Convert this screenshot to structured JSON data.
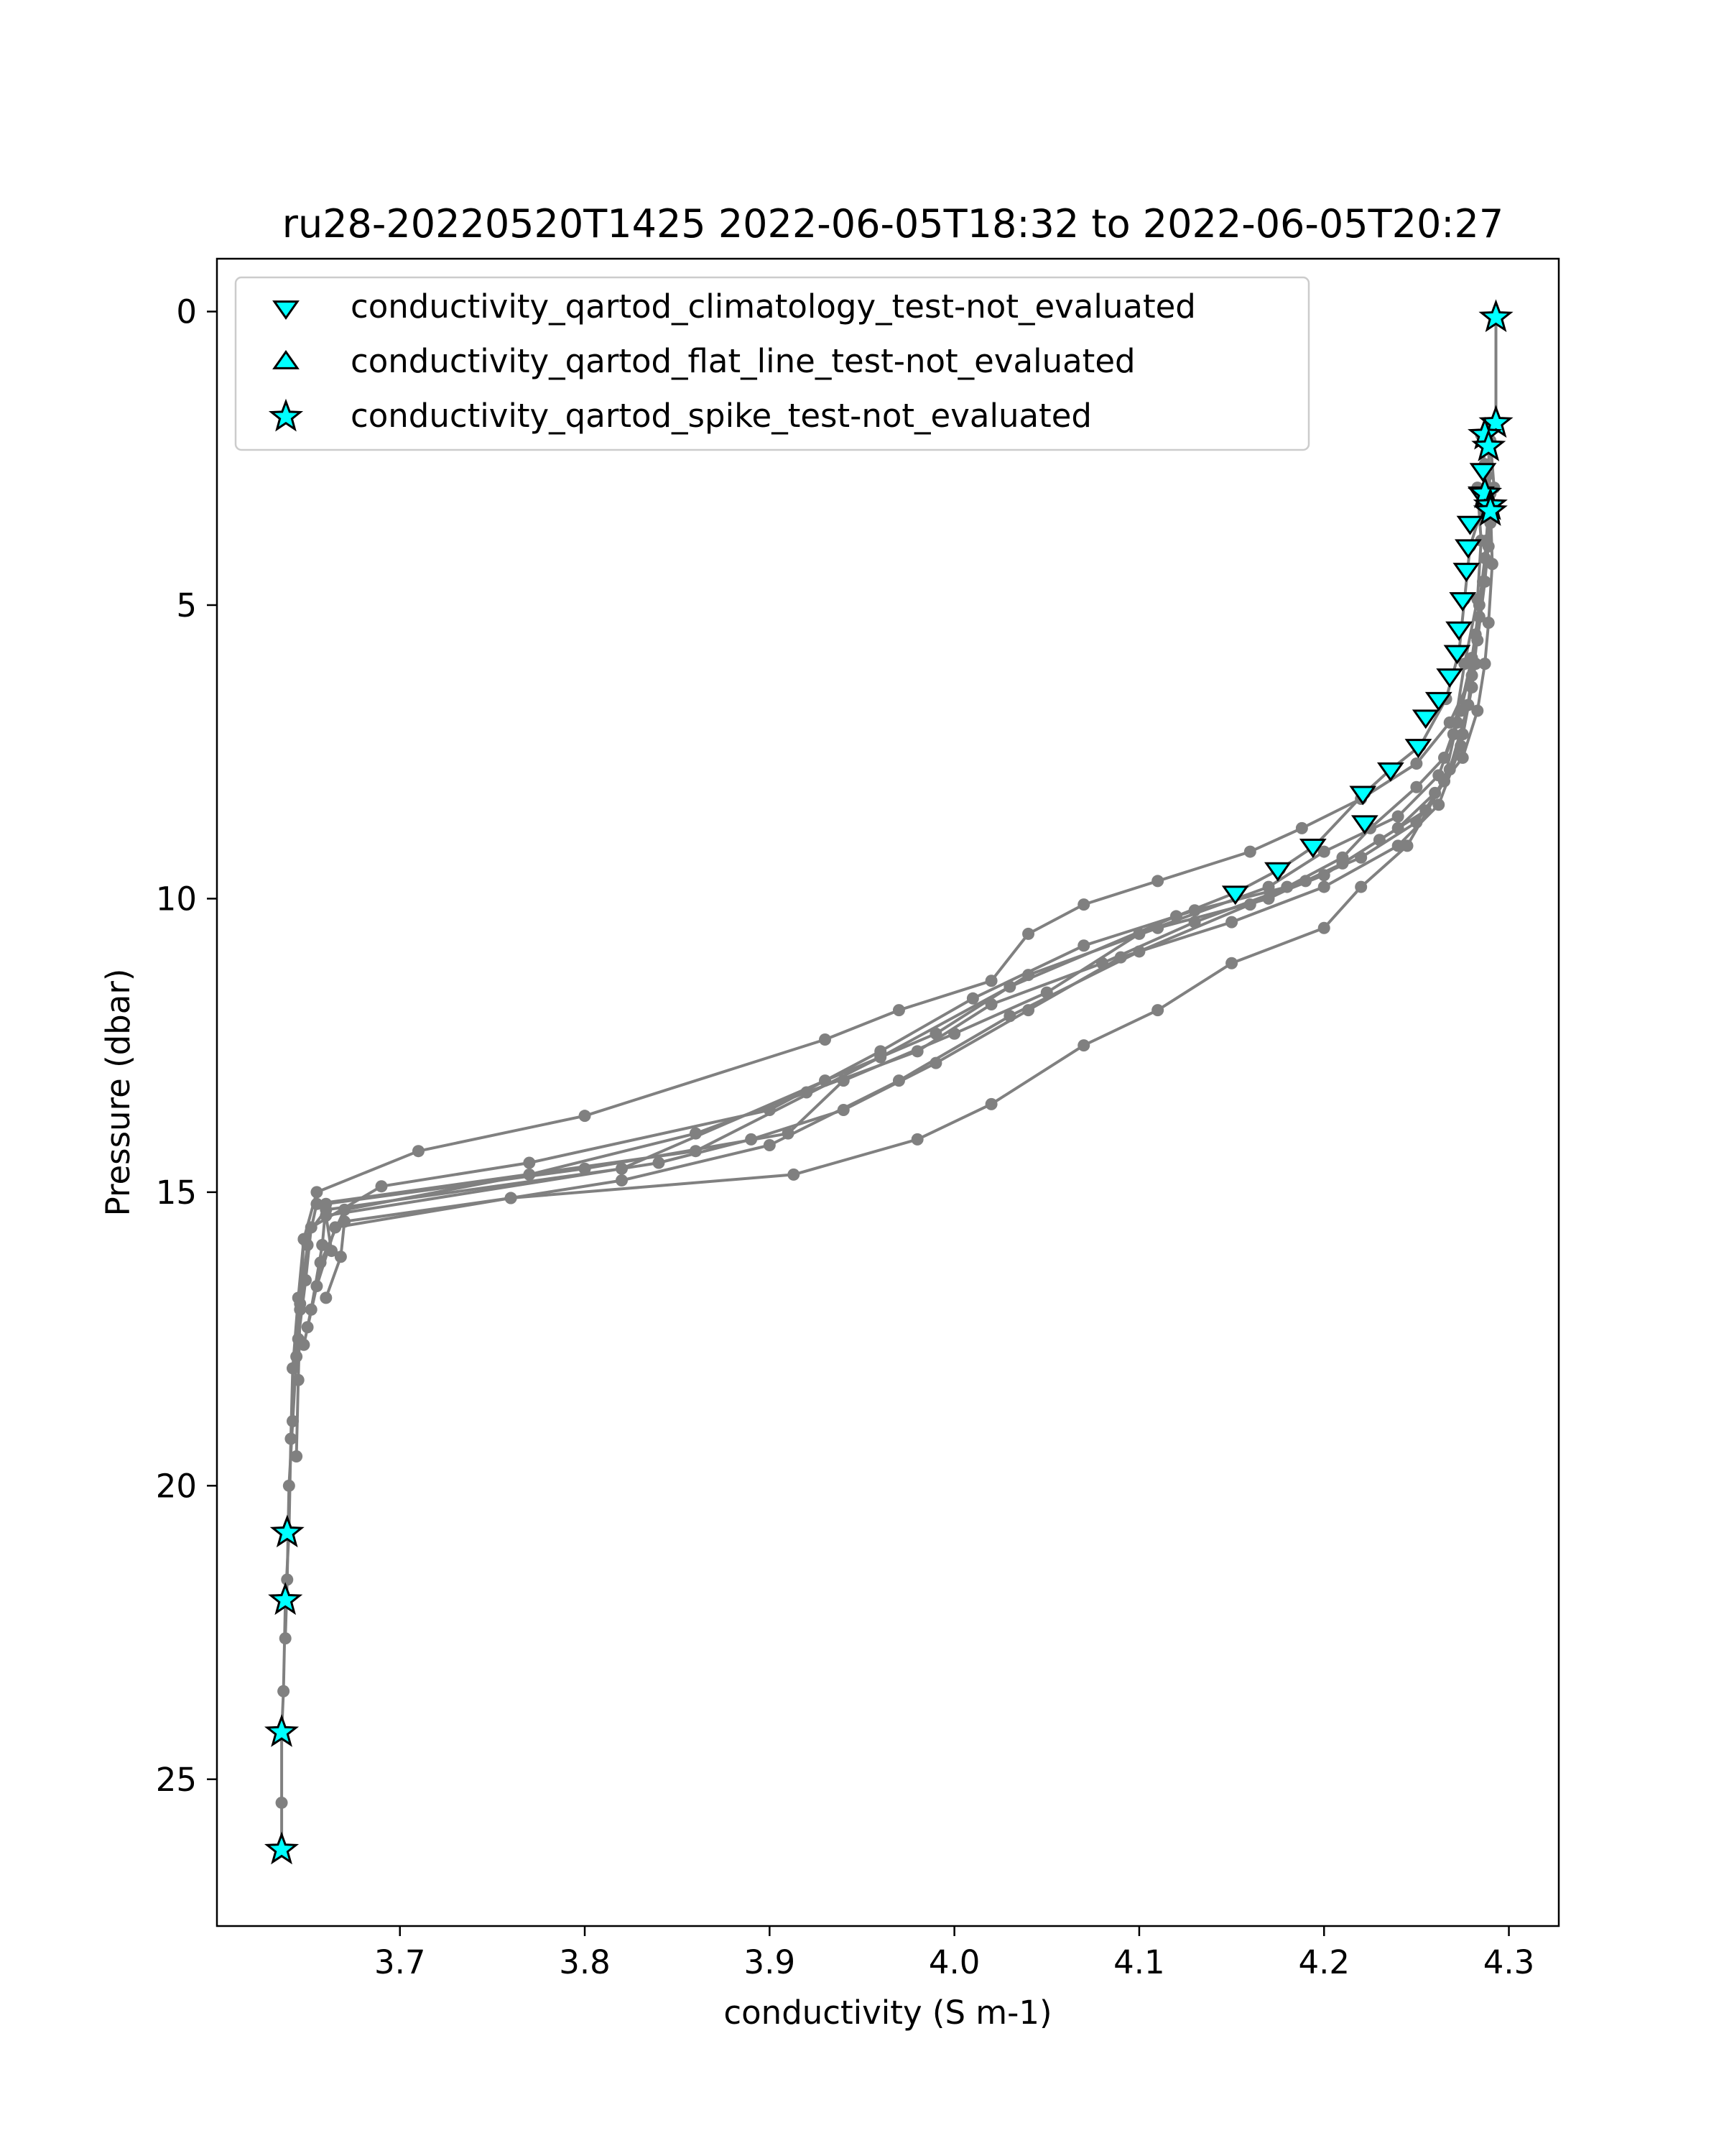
{
  "chart_data": {
    "type": "scatter",
    "title": "ru28-20220520T1425 2022-06-05T18:32 to 2022-06-05T20:27",
    "xlabel": "conductivity (S m-1)",
    "ylabel": "Pressure (dbar)",
    "xlim": [
      3.601,
      4.327
    ],
    "ylim": [
      27.5,
      -0.9
    ],
    "y_inverted": true,
    "x_ticks": [
      "3.7",
      "3.8",
      "3.9",
      "4.0",
      "4.1",
      "4.2",
      "4.3"
    ],
    "y_ticks": [
      "0",
      "5",
      "10",
      "15",
      "20",
      "25"
    ],
    "grid": false,
    "legend_position": "top-left",
    "line_color": "#808080",
    "marker_color": "#00ffff",
    "profiles": [
      {
        "points": [
          [
            4.293,
            0.1
          ],
          [
            4.293,
            1.9
          ],
          [
            4.289,
            2.3
          ],
          [
            4.29,
            3.3
          ],
          [
            4.291,
            4.3
          ],
          [
            4.289,
            5.3
          ],
          [
            4.287,
            6.0
          ],
          [
            4.283,
            6.8
          ],
          [
            4.275,
            7.6
          ],
          [
            4.26,
            8.2
          ],
          [
            4.24,
            8.8
          ],
          [
            4.21,
            9.4
          ],
          [
            4.17,
            10.0
          ],
          [
            4.11,
            10.5
          ],
          [
            4.04,
            11.3
          ],
          [
            3.99,
            12.3
          ],
          [
            3.93,
            13.1
          ],
          [
            3.82,
            14.6
          ],
          [
            3.66,
            15.3
          ],
          [
            3.648,
            15.8
          ],
          [
            3.645,
            16.8
          ],
          [
            3.642,
            18.0
          ],
          [
            3.641,
            19.2
          ],
          [
            3.64,
            20.8
          ],
          [
            3.638,
            22.0
          ],
          [
            3.637,
            23.5
          ],
          [
            3.636,
            24.2
          ],
          [
            3.636,
            25.4
          ],
          [
            3.636,
            26.2
          ]
        ]
      },
      {
        "points": [
          [
            4.285,
            2.1
          ],
          [
            4.287,
            2.6
          ],
          [
            4.286,
            3.3
          ],
          [
            4.279,
            4.0
          ],
          [
            4.276,
            4.9
          ],
          [
            4.273,
            5.8
          ],
          [
            4.266,
            6.6
          ],
          [
            4.252,
            7.4
          ],
          [
            4.236,
            7.8
          ],
          [
            4.222,
            8.2
          ],
          [
            4.195,
            9.1
          ],
          [
            4.176,
            9.5
          ],
          [
            4.152,
            9.9
          ],
          [
            4.12,
            10.3
          ],
          [
            4.03,
            11.5
          ],
          [
            3.96,
            12.7
          ],
          [
            3.86,
            14.3
          ],
          [
            3.655,
            15.2
          ],
          [
            3.65,
            15.9
          ],
          [
            3.646,
            16.9
          ],
          [
            3.644,
            17.8
          ],
          [
            3.642,
            18.9
          ],
          [
            3.64,
            20.0
          ],
          [
            3.639,
            21.6
          ],
          [
            3.638,
            22.6
          ]
        ]
      },
      {
        "points": [
          [
            4.29,
            2.2
          ],
          [
            4.292,
            3.0
          ],
          [
            4.289,
            4.0
          ],
          [
            4.284,
            5.0
          ],
          [
            4.28,
            6.2
          ],
          [
            4.268,
            7.0
          ],
          [
            4.25,
            7.7
          ],
          [
            4.22,
            8.3
          ],
          [
            4.188,
            8.8
          ],
          [
            4.16,
            9.2
          ],
          [
            4.11,
            9.7
          ],
          [
            4.07,
            10.1
          ],
          [
            4.04,
            10.6
          ],
          [
            4.02,
            11.4
          ],
          [
            3.97,
            11.9
          ],
          [
            3.93,
            12.4
          ],
          [
            3.8,
            13.7
          ],
          [
            3.71,
            14.3
          ],
          [
            3.655,
            15.0
          ],
          [
            3.648,
            15.8
          ],
          [
            3.646,
            17.0
          ],
          [
            3.645,
            18.2
          ],
          [
            3.644,
            19.5
          ]
        ]
      },
      {
        "points": [
          [
            4.288,
            2.8
          ],
          [
            4.29,
            3.6
          ],
          [
            4.287,
            4.6
          ],
          [
            4.283,
            5.6
          ],
          [
            4.274,
            6.8
          ],
          [
            4.265,
            7.6
          ],
          [
            4.25,
            8.1
          ],
          [
            4.225,
            8.8
          ],
          [
            4.21,
            9.3
          ],
          [
            4.18,
            9.8
          ],
          [
            4.13,
            10.2
          ],
          [
            4.07,
            10.8
          ],
          [
            4.01,
            11.7
          ],
          [
            3.96,
            12.6
          ],
          [
            3.9,
            13.6
          ],
          [
            3.77,
            14.5
          ],
          [
            3.69,
            14.9
          ],
          [
            3.652,
            15.6
          ],
          [
            3.649,
            16.5
          ],
          [
            3.645,
            17.5
          ]
        ]
      },
      {
        "points": [
          [
            4.283,
            3.0
          ],
          [
            4.285,
            3.9
          ],
          [
            4.283,
            4.9
          ],
          [
            4.276,
            6.0
          ],
          [
            4.27,
            7.2
          ],
          [
            4.262,
            7.9
          ],
          [
            4.24,
            8.6
          ],
          [
            4.2,
            9.2
          ],
          [
            4.17,
            9.8
          ],
          [
            4.1,
            10.6
          ],
          [
            4.05,
            11.6
          ],
          [
            4.0,
            12.3
          ],
          [
            3.94,
            13.1
          ],
          [
            3.91,
            14.0
          ],
          [
            3.8,
            14.6
          ],
          [
            3.66,
            15.2
          ],
          [
            3.658,
            15.9
          ],
          [
            3.652,
            17.0
          ]
        ]
      },
      {
        "points": [
          [
            4.289,
            3.4
          ],
          [
            4.286,
            4.6
          ],
          [
            4.28,
            5.9
          ],
          [
            4.272,
            7.0
          ],
          [
            4.265,
            8.0
          ],
          [
            4.25,
            8.7
          ],
          [
            4.22,
            9.3
          ],
          [
            4.19,
            9.7
          ],
          [
            4.13,
            10.4
          ],
          [
            4.08,
            11.1
          ],
          [
            4.02,
            11.8
          ],
          [
            3.98,
            12.6
          ],
          [
            3.92,
            13.3
          ],
          [
            3.86,
            14.0
          ],
          [
            3.77,
            14.7
          ],
          [
            3.67,
            15.3
          ],
          [
            3.657,
            16.2
          ],
          [
            3.65,
            17.3
          ]
        ]
      },
      {
        "points": [
          [
            4.29,
            3.1
          ],
          [
            4.287,
            4.2
          ],
          [
            4.282,
            5.5
          ],
          [
            4.278,
            6.7
          ],
          [
            4.268,
            7.8
          ],
          [
            4.255,
            8.5
          ],
          [
            4.23,
            9.0
          ],
          [
            4.2,
            9.6
          ],
          [
            4.16,
            10.1
          ],
          [
            4.1,
            10.9
          ],
          [
            4.03,
            12.0
          ],
          [
            3.97,
            13.1
          ],
          [
            3.9,
            14.2
          ],
          [
            3.82,
            14.8
          ],
          [
            3.76,
            15.1
          ],
          [
            3.665,
            15.6
          ],
          [
            3.655,
            16.6
          ],
          [
            3.648,
            17.6
          ]
        ]
      },
      {
        "points": [
          [
            4.288,
            3.9
          ],
          [
            4.284,
            5.2
          ],
          [
            4.28,
            6.4
          ],
          [
            4.274,
            7.4
          ],
          [
            4.262,
            8.4
          ],
          [
            4.24,
            9.1
          ],
          [
            4.2,
            9.8
          ],
          [
            4.15,
            10.4
          ],
          [
            4.09,
            11.0
          ],
          [
            4.04,
            11.9
          ],
          [
            3.99,
            12.8
          ],
          [
            3.94,
            13.6
          ],
          [
            3.89,
            14.1
          ],
          [
            3.84,
            14.5
          ],
          [
            3.66,
            15.4
          ],
          [
            3.663,
            16.0
          ]
        ]
      },
      {
        "points": [
          [
            4.282,
            6.0
          ],
          [
            4.275,
            7.2
          ],
          [
            4.265,
            8.0
          ],
          [
            4.245,
            9.1
          ],
          [
            4.22,
            9.8
          ],
          [
            4.2,
            10.5
          ],
          [
            4.15,
            11.1
          ],
          [
            4.11,
            11.9
          ],
          [
            4.07,
            12.5
          ],
          [
            4.02,
            13.5
          ],
          [
            3.98,
            14.1
          ],
          [
            3.913,
            14.7
          ],
          [
            3.76,
            15.1
          ],
          [
            3.67,
            15.5
          ],
          [
            3.668,
            16.1
          ],
          [
            3.66,
            16.8
          ]
        ]
      }
    ],
    "series": [
      {
        "name": "conductivity_qartod_climatology_test-not_evaluated",
        "marker": "triangle-down",
        "color": "#00ffff",
        "points": [
          [
            4.286,
            2.7
          ],
          [
            4.285,
            3.1
          ],
          [
            4.279,
            3.6
          ],
          [
            4.278,
            4.0
          ],
          [
            4.277,
            4.4
          ],
          [
            4.275,
            4.9
          ],
          [
            4.273,
            5.4
          ],
          [
            4.272,
            5.8
          ],
          [
            4.268,
            6.2
          ],
          [
            4.262,
            6.6
          ],
          [
            4.255,
            6.9
          ],
          [
            4.251,
            7.4
          ],
          [
            4.236,
            7.8
          ],
          [
            4.221,
            8.2
          ],
          [
            4.222,
            8.7
          ],
          [
            4.194,
            9.1
          ],
          [
            4.175,
            9.5
          ],
          [
            4.152,
            9.9
          ]
        ]
      },
      {
        "name": "conductivity_qartod_flat_line_test-not_evaluated",
        "marker": "triangle-up",
        "color": "#00ffff",
        "points": []
      },
      {
        "name": "conductivity_qartod_spike_test-not_evaluated",
        "marker": "star",
        "color": "#00ffff",
        "points": [
          [
            4.293,
            0.1
          ],
          [
            4.293,
            1.9
          ],
          [
            4.287,
            2.1
          ],
          [
            4.289,
            2.3
          ],
          [
            4.287,
            3.1
          ],
          [
            4.29,
            3.3
          ],
          [
            4.29,
            3.4
          ],
          [
            3.639,
            20.8
          ],
          [
            3.638,
            21.95
          ],
          [
            3.636,
            24.2
          ],
          [
            3.636,
            26.2
          ]
        ]
      }
    ]
  }
}
